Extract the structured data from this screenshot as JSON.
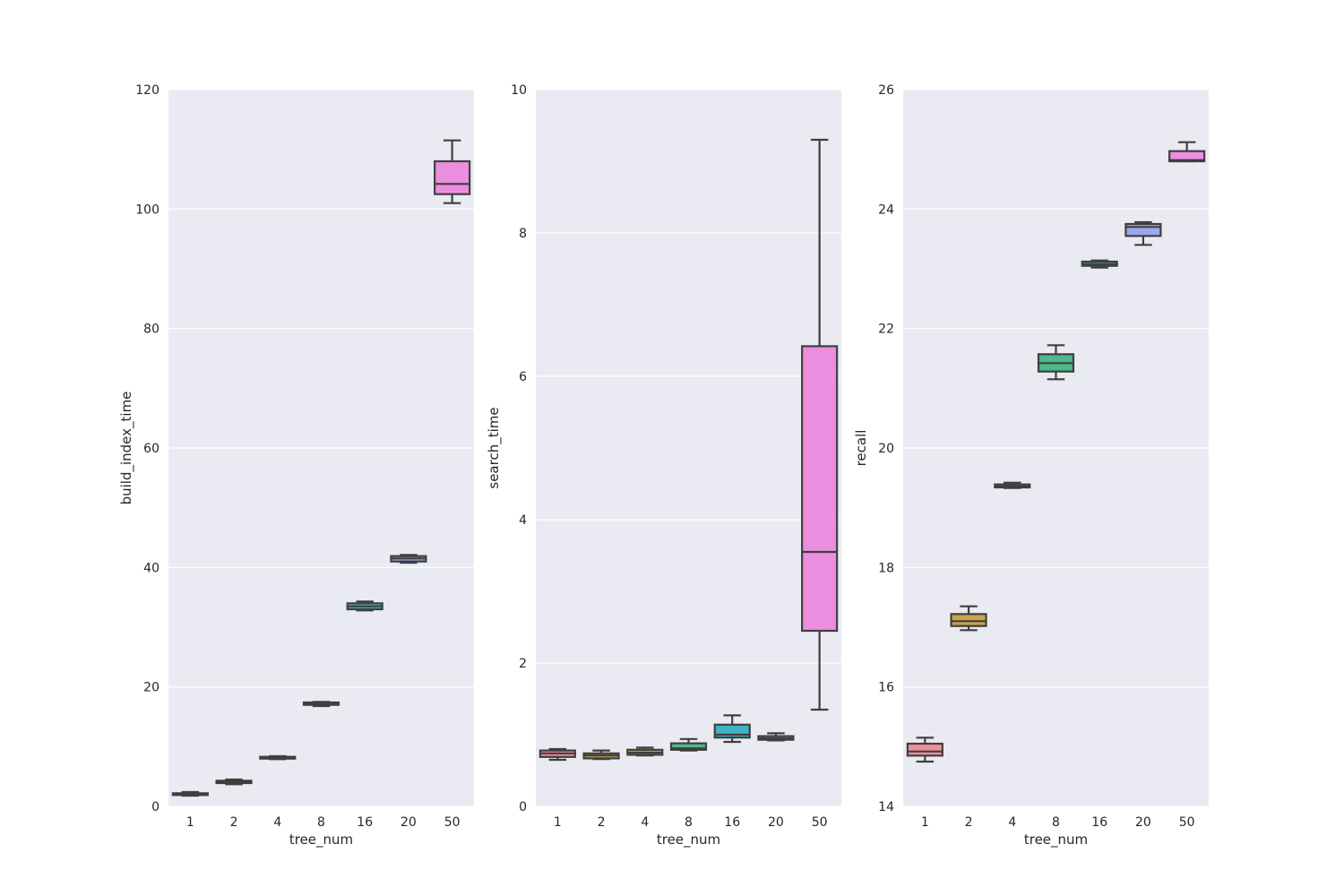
{
  "chart_data": [
    {
      "type": "box",
      "xlabel": "tree_num",
      "ylabel": "build_index_time",
      "ylim": [
        0,
        120
      ],
      "yticks": [
        0,
        20,
        40,
        60,
        80,
        100,
        120
      ],
      "categories": [
        "1",
        "2",
        "4",
        "8",
        "16",
        "20",
        "50"
      ],
      "grid": true,
      "boxes": [
        {
          "whisker_low": 1.8,
          "q1": 1.9,
          "median": 2.0,
          "q3": 2.2,
          "whisker_high": 2.4
        },
        {
          "whisker_low": 3.7,
          "q1": 3.9,
          "median": 4.1,
          "q3": 4.3,
          "whisker_high": 4.5
        },
        {
          "whisker_low": 7.9,
          "q1": 8.0,
          "median": 8.1,
          "q3": 8.3,
          "whisker_high": 8.4
        },
        {
          "whisker_low": 16.8,
          "q1": 17.0,
          "median": 17.2,
          "q3": 17.4,
          "whisker_high": 17.5
        },
        {
          "whisker_low": 32.8,
          "q1": 33.0,
          "median": 33.5,
          "q3": 34.0,
          "whisker_high": 34.3
        },
        {
          "whisker_low": 40.8,
          "q1": 41.0,
          "median": 41.5,
          "q3": 41.9,
          "whisker_high": 42.1
        },
        {
          "whisker_low": 101.0,
          "q1": 102.5,
          "median": 104.2,
          "q3": 108.0,
          "whisker_high": 111.5
        }
      ]
    },
    {
      "type": "box",
      "xlabel": "tree_num",
      "ylabel": "search_time",
      "ylim": [
        0,
        10
      ],
      "yticks": [
        0,
        2,
        4,
        6,
        8,
        10
      ],
      "categories": [
        "1",
        "2",
        "4",
        "8",
        "16",
        "20",
        "50"
      ],
      "grid": true,
      "boxes": [
        {
          "whisker_low": 0.65,
          "q1": 0.69,
          "median": 0.74,
          "q3": 0.78,
          "whisker_high": 0.8
        },
        {
          "whisker_low": 0.66,
          "q1": 0.67,
          "median": 0.71,
          "q3": 0.74,
          "whisker_high": 0.78
        },
        {
          "whisker_low": 0.71,
          "q1": 0.72,
          "median": 0.75,
          "q3": 0.79,
          "whisker_high": 0.82
        },
        {
          "whisker_low": 0.78,
          "q1": 0.79,
          "median": 0.81,
          "q3": 0.88,
          "whisker_high": 0.94
        },
        {
          "whisker_low": 0.9,
          "q1": 0.96,
          "median": 1.0,
          "q3": 1.14,
          "whisker_high": 1.27
        },
        {
          "whisker_low": 0.92,
          "q1": 0.93,
          "median": 0.95,
          "q3": 0.98,
          "whisker_high": 1.02
        },
        {
          "whisker_low": 1.35,
          "q1": 2.45,
          "median": 3.55,
          "q3": 6.42,
          "whisker_high": 9.3
        }
      ]
    },
    {
      "type": "box",
      "xlabel": "tree_num",
      "ylabel": "recall",
      "ylim": [
        14,
        26
      ],
      "yticks": [
        14,
        16,
        18,
        20,
        22,
        24,
        26
      ],
      "categories": [
        "1",
        "2",
        "4",
        "8",
        "16",
        "20",
        "50"
      ],
      "grid": true,
      "boxes": [
        {
          "whisker_low": 14.75,
          "q1": 14.85,
          "median": 14.92,
          "q3": 15.05,
          "whisker_high": 15.15
        },
        {
          "whisker_low": 16.95,
          "q1": 17.02,
          "median": 17.1,
          "q3": 17.22,
          "whisker_high": 17.35
        },
        {
          "whisker_low": 19.33,
          "q1": 19.34,
          "median": 19.36,
          "q3": 19.39,
          "whisker_high": 19.42
        },
        {
          "whisker_low": 21.15,
          "q1": 21.28,
          "median": 21.42,
          "q3": 21.57,
          "whisker_high": 21.72
        },
        {
          "whisker_low": 23.02,
          "q1": 23.05,
          "median": 23.08,
          "q3": 23.12,
          "whisker_high": 23.14
        },
        {
          "whisker_low": 23.4,
          "q1": 23.55,
          "median": 23.7,
          "q3": 23.75,
          "whisker_high": 23.78
        },
        {
          "whisker_low": 24.8,
          "q1": 24.8,
          "median": 24.82,
          "q3": 24.97,
          "whisker_high": 25.12
        }
      ]
    }
  ],
  "palette": [
    "#f08e9b",
    "#c9a34e",
    "#a3b84c",
    "#4cba8a",
    "#3fb3c4",
    "#9aa8f0",
    "#ec8ee0"
  ],
  "colors": {
    "panel_background": "#eaeaf2",
    "grid": "#ffffff",
    "box_edge": "#3f3f3f",
    "text": "#262626"
  }
}
